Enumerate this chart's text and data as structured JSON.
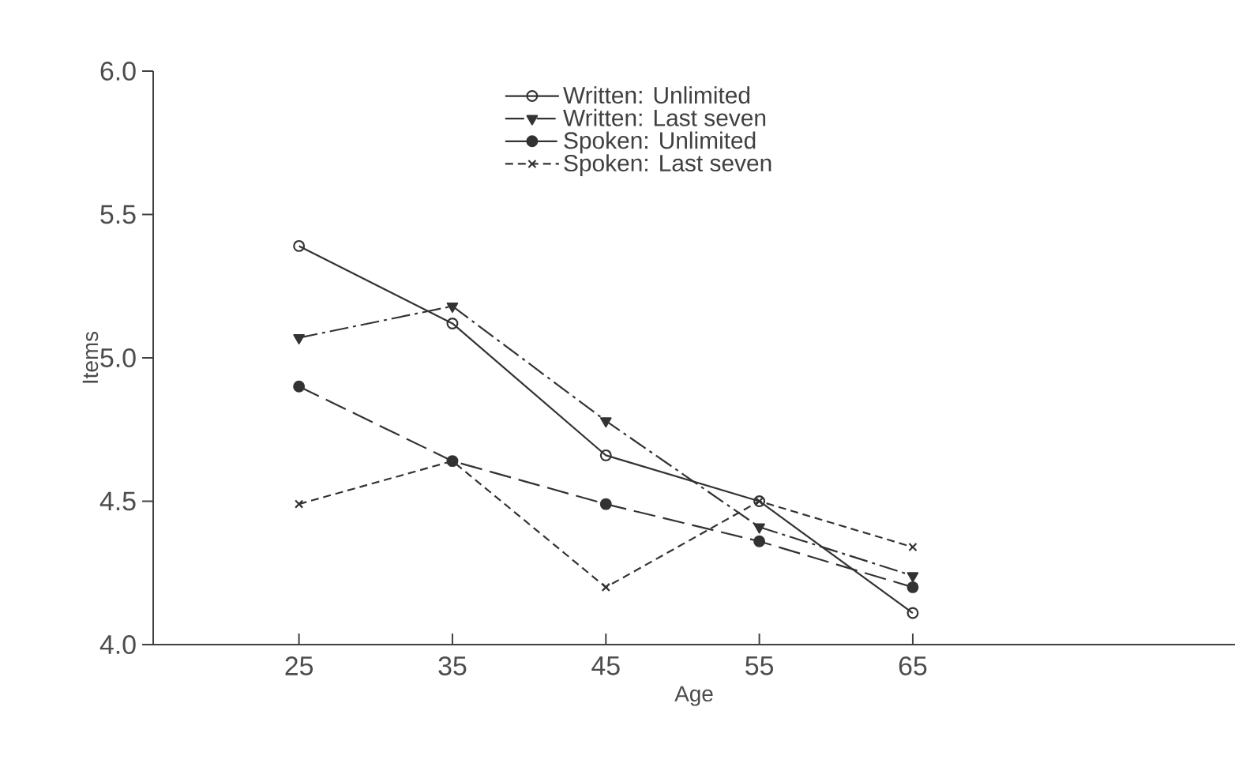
{
  "chart_data": {
    "type": "line",
    "xlabel": "Age",
    "ylabel": "Items",
    "x": [
      25,
      35,
      45,
      55,
      65
    ],
    "xlim": [
      15.5,
      86
    ],
    "xticks": [
      25,
      35,
      45,
      55,
      65
    ],
    "ylim": [
      4.0,
      6.0
    ],
    "yticks": [
      {
        "value": 4.0,
        "label": "4.0"
      },
      {
        "value": 4.5,
        "label": "4.5"
      },
      {
        "value": 5.0,
        "label": "5.0"
      },
      {
        "value": 5.5,
        "label": "5.5"
      },
      {
        "value": 6.0,
        "label": "6.0"
      }
    ],
    "grid": false,
    "legend": "top",
    "series": [
      {
        "name": "Written: Unlimited",
        "color": "#333333",
        "marker": "circle",
        "line_style": "solid",
        "values": [
          5.39,
          5.12,
          4.66,
          4.5,
          4.11
        ]
      },
      {
        "name": "Written: Last seven",
        "color": "#333333",
        "marker": "triangle",
        "line_style": "dashdot",
        "values": [
          5.07,
          5.18,
          4.78,
          4.41,
          4.24
        ]
      },
      {
        "name": "Spoken: Unlimited",
        "color": "#333333",
        "marker": "circle-filled",
        "line_style": "longdashed",
        "values": [
          4.9,
          4.64,
          4.49,
          4.36,
          4.2
        ]
      },
      {
        "name": "Spoken: Last seven",
        "color": "#333333",
        "marker": "cross",
        "line_style": "dashed",
        "values": [
          4.49,
          4.64,
          4.2,
          4.5,
          4.34
        ]
      }
    ]
  }
}
